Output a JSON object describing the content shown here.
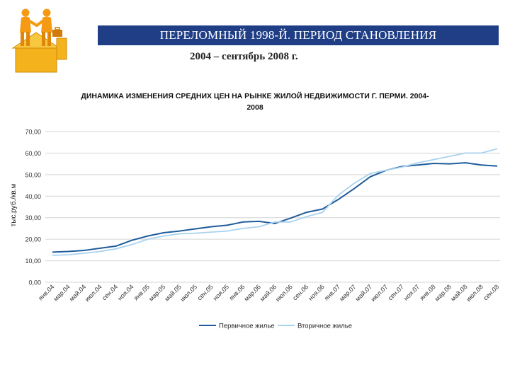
{
  "slide": {
    "banner_title": "ПЕРЕЛОМНЫЙ 1998-Й. ПЕРИОД СТАНОВЛЕНИЯ",
    "subtitle": "2004 – сентябрь 2008 г.",
    "logo_icon": "handshake-people-icon",
    "banner_color": "#1f3e86"
  },
  "chart_data": {
    "type": "line",
    "title_line1": "ДИНАМИКА ИЗМЕНЕНИЯ СРЕДНИХ ЦЕН НА РЫНКЕ ЖИЛОЙ НЕДВИЖИМОСТИ Г. ПЕРМИ. 2004-",
    "title_line2": "2008",
    "xlabel": "",
    "ylabel": "тыс.руб./кв.м",
    "ylim": [
      0,
      70
    ],
    "yticks": [
      "0,00",
      "10,00",
      "20,00",
      "30,00",
      "40,00",
      "50,00",
      "60,00",
      "70,00"
    ],
    "ytick_values": [
      0,
      10,
      20,
      30,
      40,
      50,
      60,
      70
    ],
    "grid": true,
    "legend_position": "bottom",
    "x": [
      "янв.04",
      "мар.04",
      "май.04",
      "июл.04",
      "сен.04",
      "ноя.04",
      "янв.05",
      "мар.05",
      "май.05",
      "июл.05",
      "сен.05",
      "ноя.05",
      "янв.06",
      "мар.06",
      "май.06",
      "июл.06",
      "сен.06",
      "ноя.06",
      "янв.07",
      "мар.07",
      "май.07",
      "июл.07",
      "сен.07",
      "ноя.07",
      "янв.08",
      "мар.08",
      "май.08",
      "июл.08",
      "сен.08"
    ],
    "series": [
      {
        "name": "Первичное жилье",
        "color": "#1f5c9a",
        "values": [
          14.0,
          14.3,
          14.8,
          15.8,
          16.8,
          19.5,
          21.5,
          23.0,
          23.8,
          24.8,
          25.8,
          26.5,
          28.0,
          28.3,
          27.3,
          29.8,
          32.5,
          34.0,
          38.5,
          43.5,
          49.0,
          52.0,
          53.8,
          54.5,
          55.2,
          55.0,
          55.5,
          54.5,
          54.0
        ]
      },
      {
        "name": "Вторичное жилье",
        "color": "#a9d2ee",
        "values": [
          12.5,
          12.8,
          13.5,
          14.3,
          15.5,
          17.5,
          20.0,
          21.5,
          22.5,
          22.8,
          23.3,
          23.8,
          25.0,
          25.8,
          28.0,
          28.0,
          30.5,
          32.5,
          40.5,
          46.0,
          50.5,
          52.0,
          53.5,
          55.5,
          57.0,
          58.5,
          60.0,
          60.0,
          62.0
        ]
      }
    ]
  }
}
